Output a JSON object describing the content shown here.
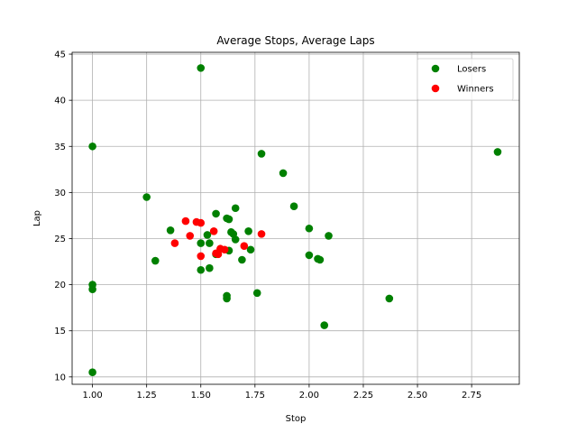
{
  "chart_data": {
    "type": "scatter",
    "title": "Average Stops, Average Laps",
    "xlabel": "Stop",
    "ylabel": "Lap",
    "xlim": [
      0.906,
      2.97
    ],
    "ylim": [
      9.2,
      45.2
    ],
    "xticks": [
      1.0,
      1.25,
      1.5,
      1.75,
      2.0,
      2.25,
      2.5,
      2.75
    ],
    "xtick_labels": [
      "1.00",
      "1.25",
      "1.50",
      "1.75",
      "2.00",
      "2.25",
      "2.50",
      "2.75"
    ],
    "yticks": [
      10,
      15,
      20,
      25,
      30,
      35,
      40,
      45
    ],
    "ytick_labels": [
      "10",
      "15",
      "20",
      "25",
      "30",
      "35",
      "40",
      "45"
    ],
    "grid": true,
    "legend_position": "top-right",
    "series": [
      {
        "name": "Losers",
        "color": "#008000",
        "points": [
          [
            1.0,
            35.0
          ],
          [
            1.0,
            20.0
          ],
          [
            1.0,
            19.5
          ],
          [
            1.0,
            10.5
          ],
          [
            1.25,
            29.5
          ],
          [
            1.29,
            22.6
          ],
          [
            1.36,
            25.9
          ],
          [
            1.5,
            43.5
          ],
          [
            1.5,
            24.5
          ],
          [
            1.5,
            21.6
          ],
          [
            1.53,
            25.4
          ],
          [
            1.54,
            24.5
          ],
          [
            1.54,
            21.8
          ],
          [
            1.57,
            27.7
          ],
          [
            1.57,
            23.3
          ],
          [
            1.62,
            27.2
          ],
          [
            1.62,
            18.8
          ],
          [
            1.62,
            18.5
          ],
          [
            1.63,
            27.1
          ],
          [
            1.63,
            23.7
          ],
          [
            1.64,
            25.7
          ],
          [
            1.65,
            25.5
          ],
          [
            1.66,
            24.9
          ],
          [
            1.66,
            28.3
          ],
          [
            1.69,
            22.7
          ],
          [
            1.72,
            25.8
          ],
          [
            1.73,
            23.8
          ],
          [
            1.76,
            19.1
          ],
          [
            1.78,
            34.2
          ],
          [
            1.88,
            32.1
          ],
          [
            1.93,
            28.5
          ],
          [
            2.0,
            26.1
          ],
          [
            2.0,
            23.2
          ],
          [
            2.04,
            22.8
          ],
          [
            2.05,
            22.7
          ],
          [
            2.07,
            15.6
          ],
          [
            2.09,
            25.3
          ],
          [
            2.37,
            18.5
          ],
          [
            2.87,
            34.4
          ]
        ]
      },
      {
        "name": "Winners",
        "color": "#ff0000",
        "points": [
          [
            1.38,
            24.5
          ],
          [
            1.43,
            26.9
          ],
          [
            1.45,
            25.3
          ],
          [
            1.48,
            26.8
          ],
          [
            1.5,
            26.7
          ],
          [
            1.5,
            23.1
          ],
          [
            1.56,
            25.8
          ],
          [
            1.57,
            23.4
          ],
          [
            1.58,
            23.3
          ],
          [
            1.59,
            23.9
          ],
          [
            1.61,
            23.8
          ],
          [
            1.7,
            24.2
          ],
          [
            1.78,
            25.5
          ]
        ]
      }
    ]
  }
}
